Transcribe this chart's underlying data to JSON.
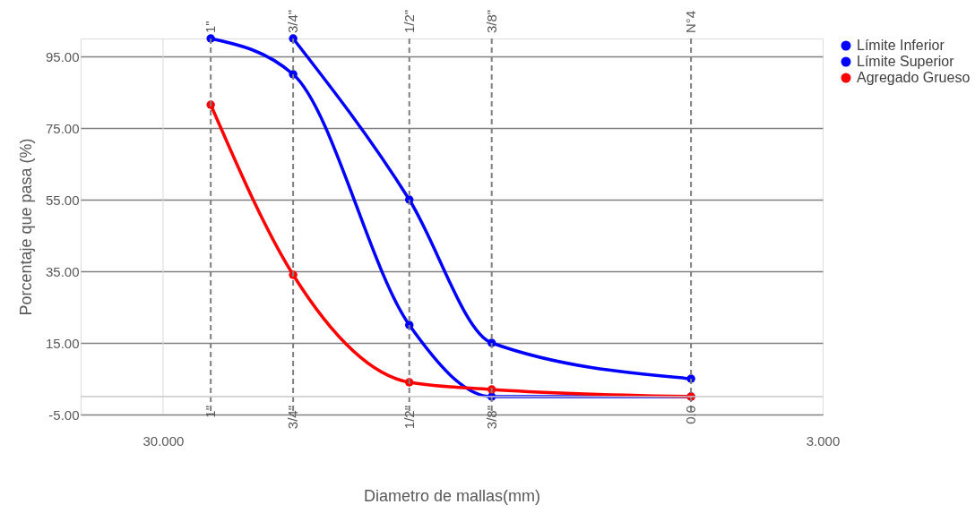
{
  "chart_data": {
    "type": "line",
    "xlabel": "Diametro de mallas(mm)",
    "ylabel": "Porcentaje que pasa (%)",
    "x": [
      25.4,
      19.05,
      12.7,
      9.525,
      4.75
    ],
    "series": [
      {
        "name": "Límite Inferior",
        "color": "#0000ff",
        "values": [
          100,
          90,
          20,
          0,
          0
        ]
      },
      {
        "name": "Límite Superior",
        "color": "#0000ff",
        "values": [
          null,
          100,
          55,
          15,
          5
        ]
      },
      {
        "name": "Agregado Grueso",
        "color": "#ff0000",
        "values": [
          81.5,
          34,
          4,
          2,
          0
        ]
      }
    ],
    "log": "x",
    "xlim": [
      40,
      3
    ],
    "ylim": [
      -5,
      100
    ],
    "xticks": [
      {
        "value": 30,
        "label": "30.000"
      },
      {
        "value": 3,
        "label": "3.000"
      }
    ],
    "annotations": [
      {
        "text": "1\"",
        "x": 25.4,
        "y": 100
      },
      {
        "text": "3/4\"",
        "x": 19.05,
        "y": 100
      },
      {
        "text": "1/2\"",
        "x": 12.7,
        "y": 100
      },
      {
        "text": "3/8\"",
        "x": 9.525,
        "y": 100
      },
      {
        "text": "N°4",
        "x": 4.75,
        "y": 100
      },
      {
        "text": "1\"",
        "x": 25.4,
        "y": -5
      },
      {
        "text": "3/4\"",
        "x": 19.05,
        "y": -5
      },
      {
        "text": "1/2\"",
        "x": 12.7,
        "y": -5
      },
      {
        "text": "3/8\"",
        "x": 9.525,
        "y": -5
      },
      {
        "text": "0.0",
        "x": 4.75,
        "y": -5
      }
    ],
    "yticks": [
      {
        "value": -5,
        "label": "-5.00"
      },
      {
        "value": 15,
        "label": "15.00"
      },
      {
        "value": 35,
        "label": "35.00"
      },
      {
        "value": 55,
        "label": "55.00"
      },
      {
        "value": 75,
        "label": "75.00"
      },
      {
        "value": 95,
        "label": "95.00"
      }
    ],
    "ref_lines": [
      {
        "axis": "x",
        "value": 30,
        "color": "#d9d9d9"
      },
      {
        "axis": "x",
        "value": 25.4,
        "line_style": "dashed",
        "color": "#7f7f7f"
      },
      {
        "axis": "x",
        "value": 19.05,
        "line_style": "dashed",
        "color": "#7f7f7f"
      },
      {
        "axis": "x",
        "value": 12.7,
        "line_style": "dashed",
        "color": "#7f7f7f"
      },
      {
        "axis": "x",
        "value": 9.525,
        "line_style": "dashed",
        "color": "#7f7f7f"
      },
      {
        "axis": "x",
        "value": 4.75,
        "line_style": "dashed",
        "color": "#7f7f7f"
      },
      {
        "axis": "y",
        "value": 0,
        "color": "#c8c8c8"
      }
    ],
    "grid": "y",
    "legend": "right",
    "marker": "circle",
    "line_style": "solid"
  }
}
